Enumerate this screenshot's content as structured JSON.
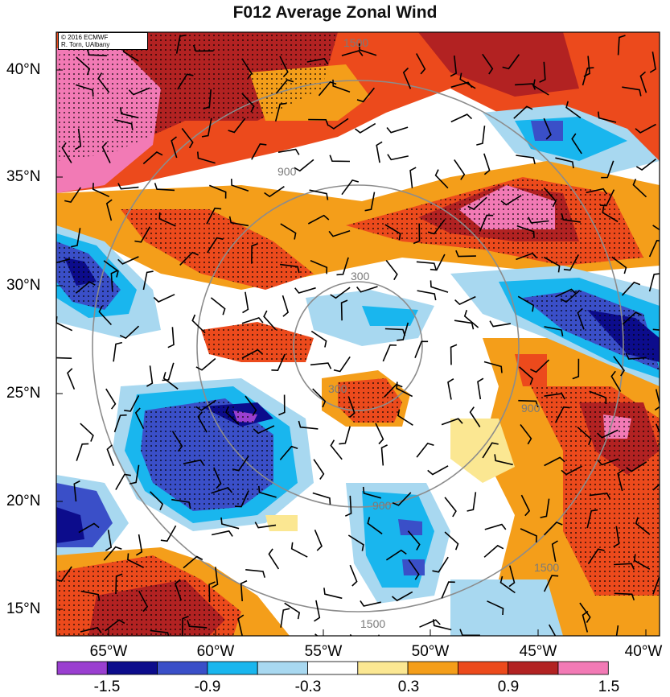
{
  "title": "F012 Average Zonal Wind",
  "credit": {
    "line1": "© 2016 ECMWF",
    "line2": "R. Torn, UAlbany"
  },
  "lat_labels": [
    "40°N",
    "35°N",
    "30°N",
    "25°N",
    "20°N",
    "15°N"
  ],
  "lon_labels": [
    "65°W",
    "60°W",
    "55°W",
    "50°W",
    "45°W",
    "40°W"
  ],
  "colorbar": {
    "labels": [
      "-1.5",
      "-0.9",
      "-0.3",
      "0.3",
      "0.9",
      "1.5"
    ],
    "colors": [
      "#9a3fd0",
      "#0c0c8c",
      "#3a4fc8",
      "#19b6ee",
      "#a8d8f0",
      "#ffffff",
      "#fbe792",
      "#f49e1a",
      "#ec4a1c",
      "#b22222",
      "#f27ab5"
    ]
  },
  "range_ring_labels": [
    "300",
    "900",
    "1500"
  ],
  "map_colors": {
    "strong_pos": "#b22222",
    "pos": "#ec4a1c",
    "moderate_pos": "#f49e1a",
    "weak_pos": "#fbe792",
    "weak_neg": "#a8d8f0",
    "neg": "#19b6ee",
    "moderate_neg": "#3a4fc8",
    "strong_neg": "#0c0c8c",
    "extreme_pos": "#f27ab5"
  }
}
